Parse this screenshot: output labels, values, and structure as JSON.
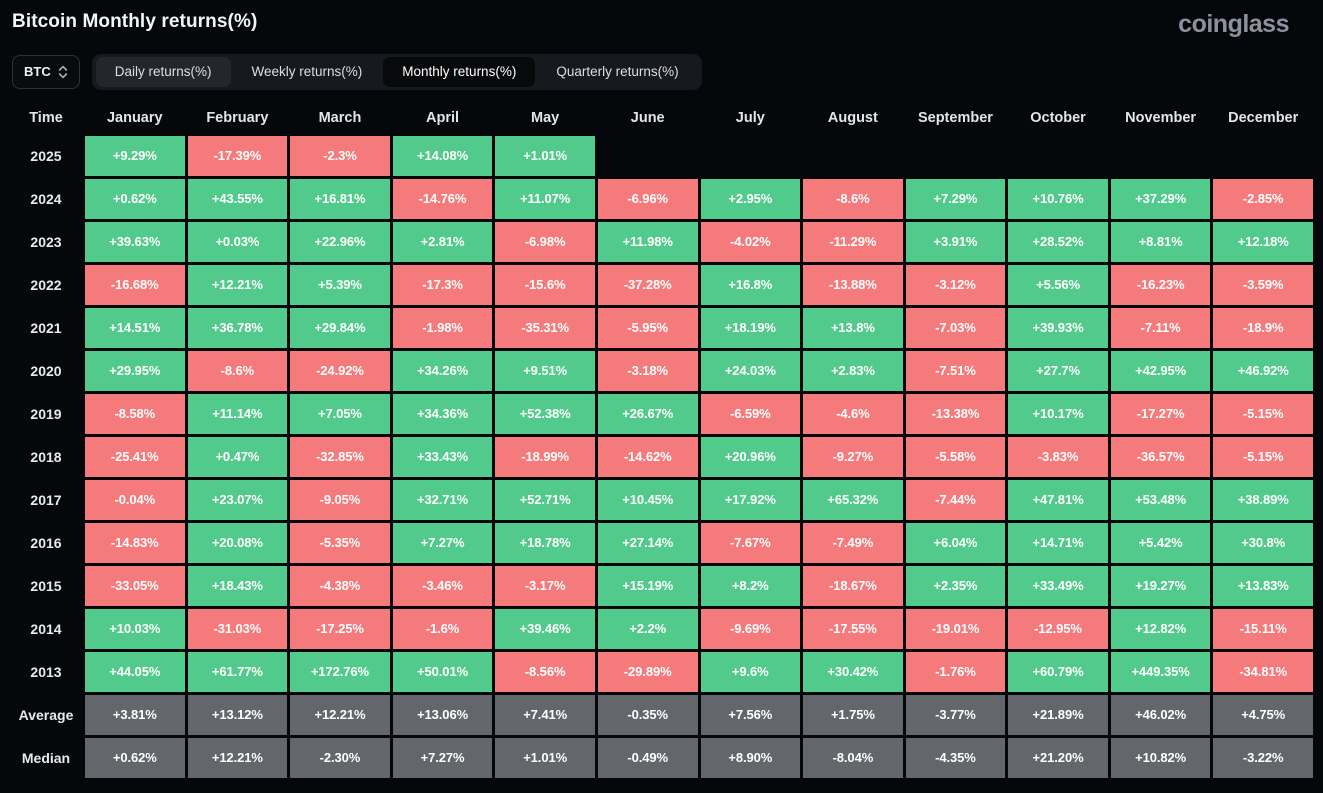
{
  "page": {
    "title": "Bitcoin Monthly returns(%)",
    "logo": "coinglass"
  },
  "controls": {
    "coin_select": {
      "label": "BTC"
    },
    "tabs": [
      {
        "label": "Daily returns(%)",
        "state": "dim"
      },
      {
        "label": "Weekly returns(%)",
        "state": "plain"
      },
      {
        "label": "Monthly returns(%)",
        "state": "active"
      },
      {
        "label": "Quarterly returns(%)",
        "state": "plain"
      }
    ]
  },
  "colors": {
    "positive": "#52CA8C",
    "negative": "#F57A7C",
    "neutral": "#63666A"
  },
  "table": {
    "columns": [
      "Time",
      "January",
      "February",
      "March",
      "April",
      "May",
      "June",
      "July",
      "August",
      "September",
      "October",
      "November",
      "December"
    ],
    "rows": [
      {
        "label": "2025",
        "type": "year",
        "cells": [
          "+9.29%",
          "-17.39%",
          "-2.3%",
          "+14.08%",
          "+1.01%",
          null,
          null,
          null,
          null,
          null,
          null,
          null
        ]
      },
      {
        "label": "2024",
        "type": "year",
        "cells": [
          "+0.62%",
          "+43.55%",
          "+16.81%",
          "-14.76%",
          "+11.07%",
          "-6.96%",
          "+2.95%",
          "-8.6%",
          "+7.29%",
          "+10.76%",
          "+37.29%",
          "-2.85%"
        ]
      },
      {
        "label": "2023",
        "type": "year",
        "cells": [
          "+39.63%",
          "+0.03%",
          "+22.96%",
          "+2.81%",
          "-6.98%",
          "+11.98%",
          "-4.02%",
          "-11.29%",
          "+3.91%",
          "+28.52%",
          "+8.81%",
          "+12.18%"
        ]
      },
      {
        "label": "2022",
        "type": "year",
        "cells": [
          "-16.68%",
          "+12.21%",
          "+5.39%",
          "-17.3%",
          "-15.6%",
          "-37.28%",
          "+16.8%",
          "-13.88%",
          "-3.12%",
          "+5.56%",
          "-16.23%",
          "-3.59%"
        ]
      },
      {
        "label": "2021",
        "type": "year",
        "cells": [
          "+14.51%",
          "+36.78%",
          "+29.84%",
          "-1.98%",
          "-35.31%",
          "-5.95%",
          "+18.19%",
          "+13.8%",
          "-7.03%",
          "+39.93%",
          "-7.11%",
          "-18.9%"
        ]
      },
      {
        "label": "2020",
        "type": "year",
        "cells": [
          "+29.95%",
          "-8.6%",
          "-24.92%",
          "+34.26%",
          "+9.51%",
          "-3.18%",
          "+24.03%",
          "+2.83%",
          "-7.51%",
          "+27.7%",
          "+42.95%",
          "+46.92%"
        ]
      },
      {
        "label": "2019",
        "type": "year",
        "cells": [
          "-8.58%",
          "+11.14%",
          "+7.05%",
          "+34.36%",
          "+52.38%",
          "+26.67%",
          "-6.59%",
          "-4.6%",
          "-13.38%",
          "+10.17%",
          "-17.27%",
          "-5.15%"
        ]
      },
      {
        "label": "2018",
        "type": "year",
        "cells": [
          "-25.41%",
          "+0.47%",
          "-32.85%",
          "+33.43%",
          "-18.99%",
          "-14.62%",
          "+20.96%",
          "-9.27%",
          "-5.58%",
          "-3.83%",
          "-36.57%",
          "-5.15%"
        ]
      },
      {
        "label": "2017",
        "type": "year",
        "cells": [
          "-0.04%",
          "+23.07%",
          "-9.05%",
          "+32.71%",
          "+52.71%",
          "+10.45%",
          "+17.92%",
          "+65.32%",
          "-7.44%",
          "+47.81%",
          "+53.48%",
          "+38.89%"
        ]
      },
      {
        "label": "2016",
        "type": "year",
        "cells": [
          "-14.83%",
          "+20.08%",
          "-5.35%",
          "+7.27%",
          "+18.78%",
          "+27.14%",
          "-7.67%",
          "-7.49%",
          "+6.04%",
          "+14.71%",
          "+5.42%",
          "+30.8%"
        ]
      },
      {
        "label": "2015",
        "type": "year",
        "cells": [
          "-33.05%",
          "+18.43%",
          "-4.38%",
          "-3.46%",
          "-3.17%",
          "+15.19%",
          "+8.2%",
          "-18.67%",
          "+2.35%",
          "+33.49%",
          "+19.27%",
          "+13.83%"
        ]
      },
      {
        "label": "2014",
        "type": "year",
        "cells": [
          "+10.03%",
          "-31.03%",
          "-17.25%",
          "-1.6%",
          "+39.46%",
          "+2.2%",
          "-9.69%",
          "-17.55%",
          "-19.01%",
          "-12.95%",
          "+12.82%",
          "-15.11%"
        ]
      },
      {
        "label": "2013",
        "type": "year",
        "cells": [
          "+44.05%",
          "+61.77%",
          "+172.76%",
          "+50.01%",
          "-8.56%",
          "-29.89%",
          "+9.6%",
          "+30.42%",
          "-1.76%",
          "+60.79%",
          "+449.35%",
          "-34.81%"
        ]
      },
      {
        "label": "Average",
        "type": "summary",
        "cells": [
          "+3.81%",
          "+13.12%",
          "+12.21%",
          "+13.06%",
          "+7.41%",
          "-0.35%",
          "+7.56%",
          "+1.75%",
          "-3.77%",
          "+21.89%",
          "+46.02%",
          "+4.75%"
        ]
      },
      {
        "label": "Median",
        "type": "summary",
        "cells": [
          "+0.62%",
          "+12.21%",
          "-2.30%",
          "+7.27%",
          "+1.01%",
          "-0.49%",
          "+8.90%",
          "-8.04%",
          "-4.35%",
          "+21.20%",
          "+10.82%",
          "-3.22%"
        ]
      }
    ]
  }
}
